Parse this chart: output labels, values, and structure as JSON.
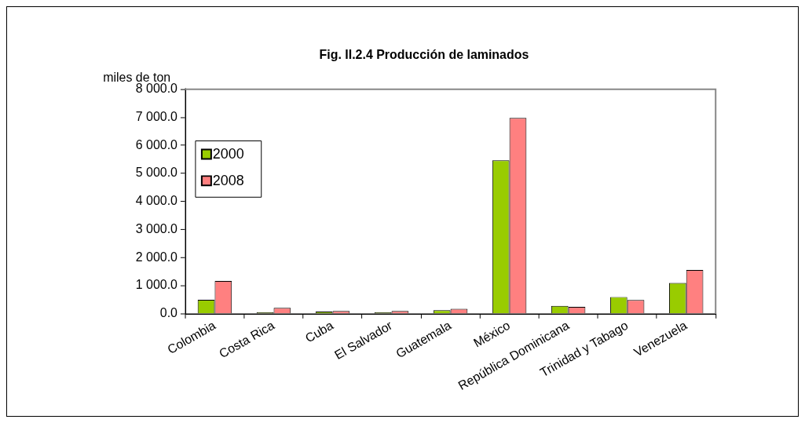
{
  "chart_data": {
    "type": "bar",
    "title": "Fig. II.2.4 Producción de laminados",
    "ylabel": "miles de ton",
    "categories": [
      "Colombia",
      "Costa Rica",
      "Cuba",
      "El Salvador",
      "Guatemala",
      "México",
      "República Dominicana",
      "Trinidad y Tabago",
      "Venezuela"
    ],
    "series": [
      {
        "name": "2000",
        "color": "#99cc00",
        "values": [
          500,
          50,
          80,
          50,
          130,
          5470,
          280,
          600,
          1100
        ]
      },
      {
        "name": "2008",
        "color": "#ff8080",
        "values": [
          1170,
          210,
          100,
          100,
          180,
          6980,
          250,
          490,
          1560
        ]
      }
    ],
    "ylim": [
      0,
      8000
    ],
    "yticks": [
      {
        "value": 0,
        "label": "0.0"
      },
      {
        "value": 1000,
        "label": "1 000.0"
      },
      {
        "value": 2000,
        "label": "2 000.0"
      },
      {
        "value": 3000,
        "label": "3 000.0"
      },
      {
        "value": 4000,
        "label": "4 000.0"
      },
      {
        "value": 5000,
        "label": "5 000.0"
      },
      {
        "value": 6000,
        "label": "6 000.0"
      },
      {
        "value": 7000,
        "label": "7 000.0"
      },
      {
        "value": 8000,
        "label": "8 000.0"
      }
    ],
    "grid": false,
    "legend": "left"
  }
}
